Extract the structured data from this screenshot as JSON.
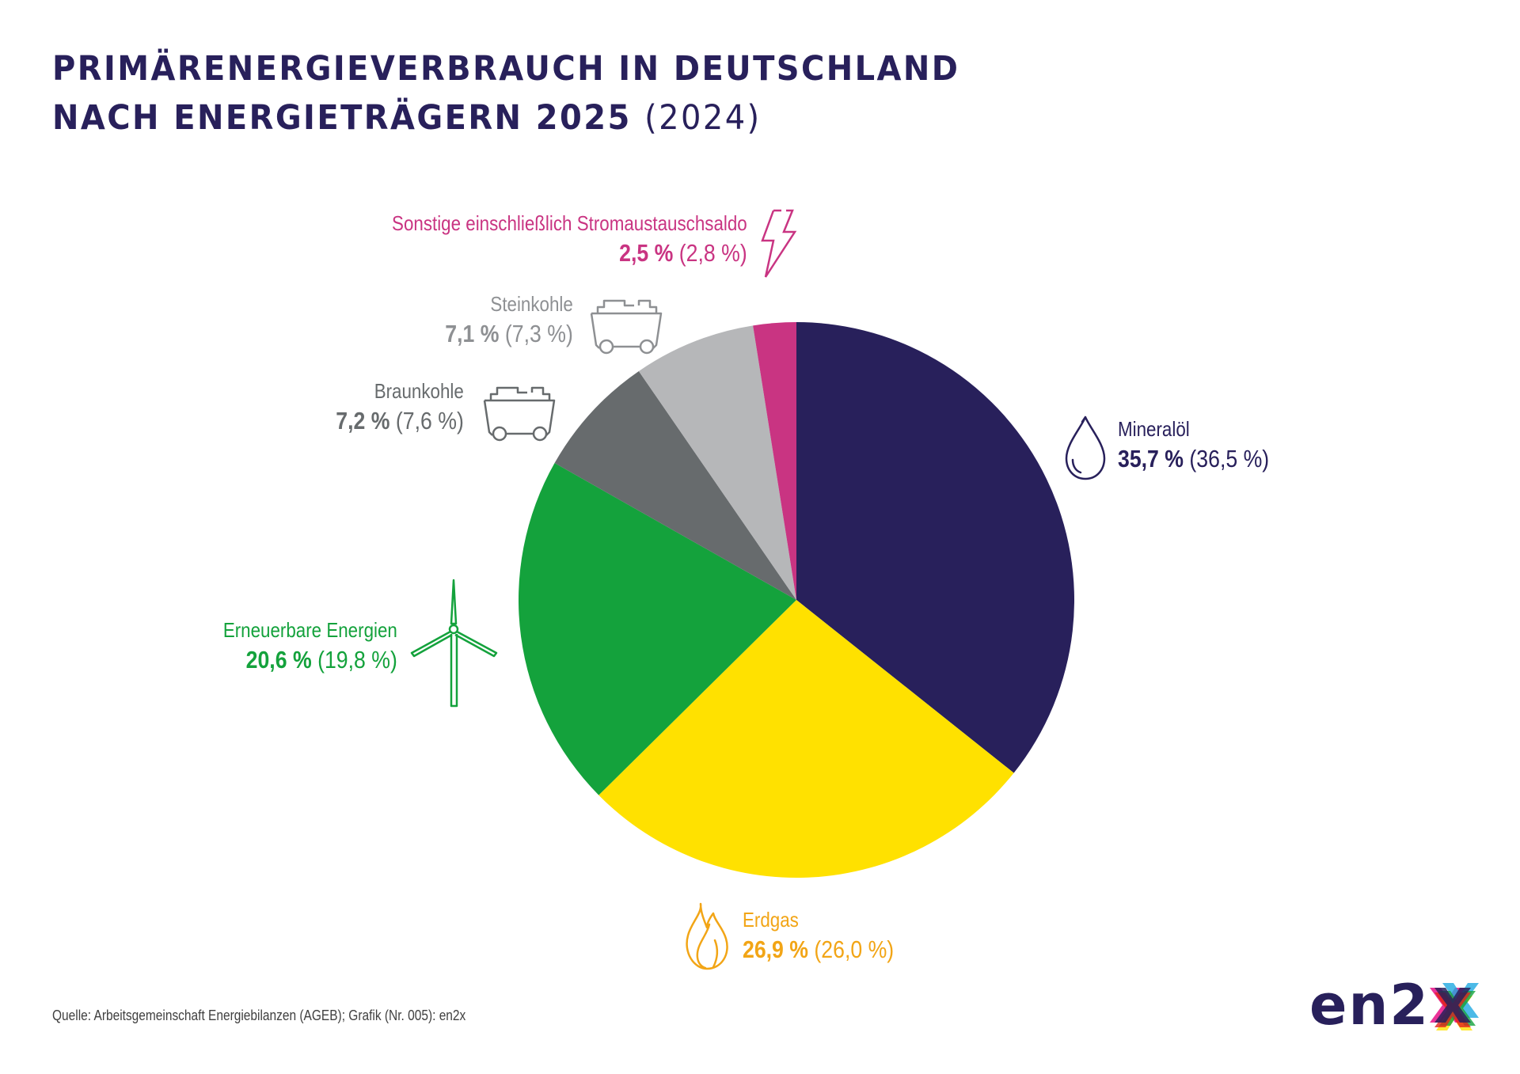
{
  "title": {
    "line1": "PRIMÄRENERGIEVERBRAUCH IN DEUTSCHLAND",
    "line2_bold": "NACH ENERGIETRÄGERN 2025",
    "line2_light": "(2024)"
  },
  "chart_data": {
    "type": "pie",
    "title": "Primärenergieverbrauch in Deutschland nach Energieträgern 2025 (2024)",
    "start_angle": "top, clockwise",
    "categories": [
      "Mineralöl",
      "Erdgas",
      "Erneuerbare Energien",
      "Braunkohle",
      "Steinkohle",
      "Sonstige einschließlich Stromaustauschsaldo"
    ],
    "series": [
      {
        "name": "2025",
        "values": [
          35.7,
          26.9,
          20.6,
          7.2,
          7.1,
          2.5
        ]
      },
      {
        "name": "2024",
        "values": [
          36.5,
          26.0,
          19.8,
          7.6,
          7.3,
          2.8
        ]
      }
    ],
    "unit": "%",
    "colors": [
      "#28205B",
      "#FFE100",
      "#14A23C",
      "#676B6D",
      "#B6B7B9",
      "#C93482"
    ],
    "slices": [
      {
        "label": "Mineralöl",
        "value": 35.7,
        "prev": 36.5,
        "value_text": "35,7 %",
        "prev_text": "(36,5 %)",
        "color": "#28205B",
        "label_color": "#28205B",
        "icon": "oil-drop-icon"
      },
      {
        "label": "Erdgas",
        "value": 26.9,
        "prev": 26.0,
        "value_text": "26,9 %",
        "prev_text": "(26,0 %)",
        "color": "#FFE100",
        "label_color": "#F2A516",
        "icon": "flame-icon"
      },
      {
        "label": "Erneuerbare Energien",
        "value": 20.6,
        "prev": 19.8,
        "value_text": "20,6 %",
        "prev_text": "(19,8 %)",
        "color": "#14A23C",
        "label_color": "#14A23C",
        "icon": "wind-turbine-icon"
      },
      {
        "label": "Braunkohle",
        "value": 7.2,
        "prev": 7.6,
        "value_text": "7,2 %",
        "prev_text": "(7,6 %)",
        "color": "#676B6D",
        "label_color": "#676B6D",
        "icon": "coal-cart-icon"
      },
      {
        "label": "Steinkohle",
        "value": 7.1,
        "prev": 7.3,
        "value_text": "7,1 %",
        "prev_text": "(7,3 %)",
        "color": "#B6B7B9",
        "label_color": "#8E9093",
        "icon": "coal-cart-icon"
      },
      {
        "label": "Sonstige einschließlich Stromaustauschsaldo",
        "value": 2.5,
        "prev": 2.8,
        "value_text": "2,5 %",
        "prev_text": "(2,8 %)",
        "color": "#C93482",
        "label_color": "#C93482",
        "icon": "lightning-icon"
      }
    ]
  },
  "footer": {
    "source": "Quelle: Arbeitsgemeinschaft Energiebilanzen (AGEB); Grafik (Nr. 005): en2x"
  },
  "logo": {
    "text": "en2",
    "x_colors": [
      "#FFE100",
      "#E6007E",
      "#1FA9E1",
      "#14A23C",
      "#E2231A",
      "#28205B"
    ]
  }
}
